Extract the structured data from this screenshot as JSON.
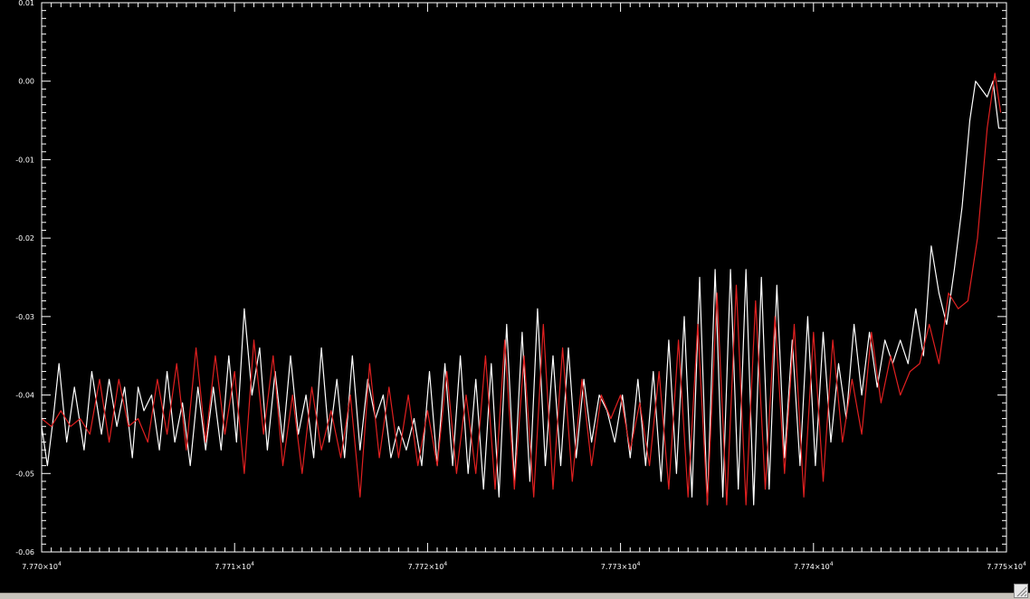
{
  "window": {
    "resize_grip_icon": "resize-grip-icon"
  },
  "colors": {
    "background": "#000000",
    "axes": "#ffffff",
    "series_1": "#ffffff",
    "series_2": "#e02020"
  },
  "chart_data": {
    "type": "line",
    "title": "",
    "xlabel": "",
    "ylabel": "",
    "xlim": [
      77700,
      77750
    ],
    "ylim": [
      -0.06,
      0.01
    ],
    "x_ticks": [
      77700,
      77710,
      77720,
      77730,
      77740,
      77750
    ],
    "x_tick_labels": [
      {
        "mant": "7.770×10",
        "exp": "4"
      },
      {
        "mant": "7.771×10",
        "exp": "4"
      },
      {
        "mant": "7.772×10",
        "exp": "4"
      },
      {
        "mant": "7.773×10",
        "exp": "4"
      },
      {
        "mant": "7.774×10",
        "exp": "4"
      },
      {
        "mant": "7.775×10",
        "exp": "4"
      }
    ],
    "y_ticks": [
      0.01,
      0.0,
      -0.01,
      -0.02,
      -0.03,
      -0.04,
      -0.05,
      -0.06
    ],
    "y_tick_labels": [
      "0.01",
      "0.00",
      "-0.01",
      "-0.02",
      "-0.03",
      "-0.04",
      "-0.05",
      "-0.06"
    ],
    "grid": false,
    "series": [
      {
        "color": "#ffffff",
        "x": [
          77700.0,
          77700.3,
          77700.6,
          77700.9,
          77701.3,
          77701.7,
          77702.2,
          77702.6,
          77703.1,
          77703.5,
          77703.9,
          77704.3,
          77704.7,
          77705.0,
          77705.3,
          77705.7,
          77706.1,
          77706.5,
          77706.9,
          77707.3,
          77707.7,
          77708.1,
          77708.5,
          77708.9,
          77709.3,
          77709.7,
          77710.1,
          77710.5,
          77710.9,
          77711.3,
          77711.7,
          77712.1,
          77712.5,
          77712.9,
          77713.3,
          77713.7,
          77714.1,
          77714.5,
          77714.9,
          77715.3,
          77715.7,
          77716.1,
          77716.5,
          77716.9,
          77717.3,
          77717.7,
          77718.1,
          77718.5,
          77718.9,
          77719.3,
          77719.7,
          77720.1,
          77720.5,
          77720.9,
          77721.3,
          77721.7,
          77722.1,
          77722.5,
          77722.9,
          77723.3,
          77723.7,
          77724.1,
          77724.5,
          77724.9,
          77725.3,
          77725.7,
          77726.1,
          77726.5,
          77726.9,
          77727.3,
          77727.7,
          77728.1,
          77728.5,
          77728.9,
          77729.3,
          77729.7,
          77730.1,
          77730.5,
          77730.9,
          77731.3,
          77731.7,
          77732.1,
          77732.5,
          77732.9,
          77733.3,
          77733.7,
          77734.1,
          77734.5,
          77734.9,
          77735.3,
          77735.7,
          77736.1,
          77736.5,
          77736.9,
          77737.3,
          77737.7,
          77738.1,
          77738.5,
          77738.9,
          77739.3,
          77739.7,
          77740.1,
          77740.5,
          77740.9,
          77741.3,
          77741.7,
          77742.1,
          77742.5,
          77742.9,
          77743.3,
          77743.7,
          77744.1,
          77744.5,
          77744.9,
          77745.3,
          77745.7,
          77746.1,
          77746.5,
          77746.9,
          77747.3,
          77747.7,
          77748.1,
          77748.4,
          77748.7,
          77749.0,
          77749.3,
          77749.6,
          77749.8
        ],
        "y": [
          -0.044,
          -0.049,
          -0.043,
          -0.036,
          -0.046,
          -0.039,
          -0.047,
          -0.037,
          -0.045,
          -0.038,
          -0.044,
          -0.039,
          -0.048,
          -0.039,
          -0.042,
          -0.04,
          -0.047,
          -0.037,
          -0.046,
          -0.041,
          -0.049,
          -0.039,
          -0.047,
          -0.039,
          -0.047,
          -0.035,
          -0.046,
          -0.029,
          -0.04,
          -0.034,
          -0.047,
          -0.037,
          -0.046,
          -0.035,
          -0.045,
          -0.04,
          -0.048,
          -0.034,
          -0.046,
          -0.038,
          -0.048,
          -0.035,
          -0.047,
          -0.038,
          -0.043,
          -0.04,
          -0.048,
          -0.044,
          -0.047,
          -0.043,
          -0.049,
          -0.037,
          -0.049,
          -0.036,
          -0.049,
          -0.035,
          -0.05,
          -0.038,
          -0.052,
          -0.036,
          -0.053,
          -0.031,
          -0.051,
          -0.032,
          -0.051,
          -0.029,
          -0.049,
          -0.035,
          -0.049,
          -0.034,
          -0.048,
          -0.038,
          -0.046,
          -0.04,
          -0.042,
          -0.046,
          -0.04,
          -0.048,
          -0.038,
          -0.049,
          -0.037,
          -0.051,
          -0.033,
          -0.05,
          -0.03,
          -0.053,
          -0.025,
          -0.054,
          -0.024,
          -0.053,
          -0.024,
          -0.052,
          -0.024,
          -0.054,
          -0.025,
          -0.052,
          -0.026,
          -0.048,
          -0.033,
          -0.049,
          -0.03,
          -0.049,
          -0.032,
          -0.046,
          -0.036,
          -0.043,
          -0.031,
          -0.04,
          -0.032,
          -0.039,
          -0.033,
          -0.036,
          -0.033,
          -0.036,
          -0.029,
          -0.035,
          -0.021,
          -0.027,
          -0.031,
          -0.024,
          -0.016,
          -0.005,
          0.0,
          -0.001,
          -0.002,
          0.0,
          -0.006,
          -0.006
        ]
      },
      {
        "color": "#e02020",
        "x": [
          77700.0,
          77700.5,
          77701.0,
          77701.5,
          77702.0,
          77702.5,
          77703.0,
          77703.5,
          77704.0,
          77704.5,
          77705.0,
          77705.5,
          77706.0,
          77706.5,
          77707.0,
          77707.5,
          77708.0,
          77708.5,
          77709.0,
          77709.5,
          77710.0,
          77710.5,
          77711.0,
          77711.5,
          77712.0,
          77712.5,
          77713.0,
          77713.5,
          77714.0,
          77714.5,
          77715.0,
          77715.5,
          77716.0,
          77716.5,
          77717.0,
          77717.5,
          77718.0,
          77718.5,
          77719.0,
          77719.5,
          77720.0,
          77720.5,
          77721.0,
          77721.5,
          77722.0,
          77722.5,
          77723.0,
          77723.5,
          77724.0,
          77724.5,
          77725.0,
          77725.5,
          77726.0,
          77726.5,
          77727.0,
          77727.5,
          77728.0,
          77728.5,
          77729.0,
          77729.5,
          77730.0,
          77730.5,
          77731.0,
          77731.5,
          77732.0,
          77732.5,
          77733.0,
          77733.5,
          77734.0,
          77734.5,
          77735.0,
          77735.5,
          77736.0,
          77736.5,
          77737.0,
          77737.5,
          77738.0,
          77738.5,
          77739.0,
          77739.5,
          77740.0,
          77740.5,
          77741.0,
          77741.5,
          77742.0,
          77742.5,
          77743.0,
          77743.5,
          77744.0,
          77744.5,
          77745.0,
          77745.5,
          77746.0,
          77746.5,
          77747.0,
          77747.5,
          77748.0,
          77748.5,
          77749.0,
          77749.4,
          77749.7
        ],
        "y": [
          -0.043,
          -0.044,
          -0.042,
          -0.044,
          -0.043,
          -0.045,
          -0.038,
          -0.046,
          -0.038,
          -0.044,
          -0.043,
          -0.046,
          -0.038,
          -0.045,
          -0.036,
          -0.047,
          -0.034,
          -0.046,
          -0.035,
          -0.045,
          -0.037,
          -0.05,
          -0.033,
          -0.045,
          -0.035,
          -0.049,
          -0.04,
          -0.05,
          -0.039,
          -0.047,
          -0.042,
          -0.048,
          -0.04,
          -0.053,
          -0.036,
          -0.048,
          -0.039,
          -0.048,
          -0.04,
          -0.049,
          -0.042,
          -0.049,
          -0.037,
          -0.05,
          -0.04,
          -0.05,
          -0.035,
          -0.052,
          -0.033,
          -0.052,
          -0.035,
          -0.053,
          -0.031,
          -0.052,
          -0.034,
          -0.051,
          -0.038,
          -0.049,
          -0.04,
          -0.043,
          -0.04,
          -0.047,
          -0.041,
          -0.049,
          -0.037,
          -0.052,
          -0.033,
          -0.053,
          -0.031,
          -0.054,
          -0.027,
          -0.054,
          -0.026,
          -0.054,
          -0.028,
          -0.052,
          -0.03,
          -0.05,
          -0.031,
          -0.053,
          -0.032,
          -0.051,
          -0.033,
          -0.046,
          -0.038,
          -0.045,
          -0.032,
          -0.041,
          -0.035,
          -0.04,
          -0.037,
          -0.036,
          -0.031,
          -0.036,
          -0.027,
          -0.029,
          -0.028,
          -0.02,
          -0.006,
          0.001,
          -0.004
        ]
      }
    ]
  }
}
